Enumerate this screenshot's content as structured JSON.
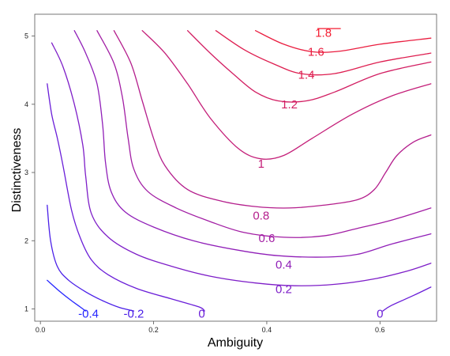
{
  "chart_data": {
    "type": "contour",
    "xlabel": "Ambiguity",
    "ylabel": "Distinctiveness",
    "xlim": [
      -0.01,
      0.7
    ],
    "ylim": [
      0.82,
      5.32
    ],
    "x_ticks": [
      0.0,
      0.2,
      0.4,
      0.6
    ],
    "x_tick_labels": [
      "0.0",
      "0.2",
      "0.4",
      "0.6"
    ],
    "y_ticks": [
      1,
      2,
      3,
      4,
      5
    ],
    "y_tick_labels": [
      "1",
      "2",
      "3",
      "4",
      "5"
    ],
    "grid": false,
    "color_scale": {
      "low": "#1f1fff",
      "high": "#ff1f3a"
    },
    "contours": [
      {
        "level": -0.4,
        "label": "-0.4",
        "label_at": [
          0.085,
          0.93
        ],
        "color": "#2525ff",
        "points": [
          [
            0.012,
            1.42
          ],
          [
            0.035,
            1.25
          ],
          [
            0.055,
            1.12
          ],
          [
            0.07,
            1.03
          ],
          [
            0.08,
            0.97
          ]
        ]
      },
      {
        "level": -0.2,
        "label": "-0.2",
        "label_at": [
          0.165,
          0.93
        ],
        "color": "#4a1fe8",
        "points": [
          [
            0.012,
            2.52
          ],
          [
            0.018,
            2.0
          ],
          [
            0.03,
            1.62
          ],
          [
            0.05,
            1.42
          ],
          [
            0.08,
            1.25
          ],
          [
            0.11,
            1.12
          ],
          [
            0.14,
            1.02
          ],
          [
            0.165,
            0.97
          ]
        ]
      },
      {
        "level": 0,
        "label": "0",
        "label_at": [
          0.285,
          0.93
        ],
        "color": "#6a1ed8",
        "points": [
          [
            0.012,
            4.3
          ],
          [
            0.02,
            3.85
          ],
          [
            0.03,
            3.5
          ],
          [
            0.04,
            3.1
          ],
          [
            0.055,
            2.45
          ],
          [
            0.07,
            2.05
          ],
          [
            0.09,
            1.72
          ],
          [
            0.12,
            1.5
          ],
          [
            0.17,
            1.3
          ],
          [
            0.23,
            1.15
          ],
          [
            0.28,
            1.03
          ],
          [
            0.29,
            0.97
          ]
        ]
      },
      {
        "level": 0,
        "label": "0",
        "label_at": [
          0.6,
          0.93
        ],
        "color": "#6a1ed8",
        "points": [
          [
            0.605,
            0.97
          ],
          [
            0.62,
            1.05
          ],
          [
            0.66,
            1.2
          ],
          [
            0.69,
            1.32
          ]
        ]
      },
      {
        "level": 0.2,
        "label": "0.2",
        "label_at": [
          0.43,
          1.29
        ],
        "color": "#7e1ec8",
        "points": [
          [
            0.02,
            4.9
          ],
          [
            0.04,
            4.55
          ],
          [
            0.06,
            4.0
          ],
          [
            0.075,
            3.4
          ],
          [
            0.08,
            2.95
          ],
          [
            0.09,
            2.4
          ],
          [
            0.12,
            2.05
          ],
          [
            0.17,
            1.8
          ],
          [
            0.23,
            1.63
          ],
          [
            0.3,
            1.48
          ],
          [
            0.38,
            1.38
          ],
          [
            0.45,
            1.34
          ],
          [
            0.52,
            1.36
          ],
          [
            0.59,
            1.44
          ],
          [
            0.65,
            1.56
          ],
          [
            0.69,
            1.67
          ]
        ]
      },
      {
        "level": 0.4,
        "label": "0.4",
        "label_at": [
          0.43,
          1.65
        ],
        "color": "#901fb8",
        "points": [
          [
            0.06,
            5.08
          ],
          [
            0.08,
            4.75
          ],
          [
            0.1,
            4.3
          ],
          [
            0.11,
            3.7
          ],
          [
            0.115,
            3.15
          ],
          [
            0.125,
            2.72
          ],
          [
            0.15,
            2.42
          ],
          [
            0.2,
            2.2
          ],
          [
            0.27,
            2.0
          ],
          [
            0.35,
            1.86
          ],
          [
            0.42,
            1.78
          ],
          [
            0.5,
            1.76
          ],
          [
            0.56,
            1.8
          ],
          [
            0.62,
            1.95
          ],
          [
            0.69,
            2.1
          ]
        ]
      },
      {
        "level": 0.6,
        "label": "0.6",
        "label_at": [
          0.4,
          2.04
        ],
        "color": "#a21ea4",
        "points": [
          [
            0.1,
            5.08
          ],
          [
            0.13,
            4.6
          ],
          [
            0.145,
            4.1
          ],
          [
            0.155,
            3.5
          ],
          [
            0.165,
            3.05
          ],
          [
            0.19,
            2.72
          ],
          [
            0.24,
            2.48
          ],
          [
            0.3,
            2.28
          ],
          [
            0.36,
            2.12
          ],
          [
            0.43,
            2.05
          ],
          [
            0.5,
            2.07
          ],
          [
            0.56,
            2.18
          ],
          [
            0.62,
            2.3
          ],
          [
            0.69,
            2.48
          ]
        ]
      },
      {
        "level": 0.8,
        "label": "0.8",
        "label_at": [
          0.39,
          2.37
        ],
        "color": "#b41e8c",
        "points": [
          [
            0.13,
            5.08
          ],
          [
            0.16,
            4.6
          ],
          [
            0.18,
            4.05
          ],
          [
            0.2,
            3.5
          ],
          [
            0.22,
            3.1
          ],
          [
            0.26,
            2.75
          ],
          [
            0.32,
            2.58
          ],
          [
            0.38,
            2.5
          ],
          [
            0.44,
            2.48
          ],
          [
            0.5,
            2.52
          ],
          [
            0.56,
            2.6
          ],
          [
            0.59,
            2.75
          ],
          [
            0.61,
            3.0
          ],
          [
            0.63,
            3.25
          ],
          [
            0.66,
            3.45
          ],
          [
            0.69,
            3.55
          ]
        ]
      },
      {
        "level": 1,
        "label": "1",
        "label_at": [
          0.39,
          3.13
        ],
        "color": "#c41e78",
        "points": [
          [
            0.18,
            5.08
          ],
          [
            0.22,
            4.75
          ],
          [
            0.26,
            4.3
          ],
          [
            0.3,
            3.8
          ],
          [
            0.35,
            3.35
          ],
          [
            0.39,
            3.2
          ],
          [
            0.43,
            3.25
          ],
          [
            0.48,
            3.5
          ],
          [
            0.55,
            3.85
          ],
          [
            0.62,
            4.12
          ],
          [
            0.69,
            4.3
          ]
        ]
      },
      {
        "level": 1.2,
        "label": "1.2",
        "label_at": [
          0.44,
          4.0
        ],
        "color": "#d21e62",
        "points": [
          [
            0.26,
            5.08
          ],
          [
            0.3,
            4.75
          ],
          [
            0.34,
            4.45
          ],
          [
            0.38,
            4.18
          ],
          [
            0.42,
            4.05
          ],
          [
            0.47,
            4.05
          ],
          [
            0.52,
            4.18
          ],
          [
            0.6,
            4.45
          ],
          [
            0.69,
            4.62
          ]
        ]
      },
      {
        "level": 1.4,
        "label": "1.4",
        "label_at": [
          0.47,
          4.43
        ],
        "color": "#de1e50",
        "points": [
          [
            0.31,
            5.08
          ],
          [
            0.36,
            4.8
          ],
          [
            0.41,
            4.6
          ],
          [
            0.46,
            4.45
          ],
          [
            0.52,
            4.45
          ],
          [
            0.6,
            4.62
          ],
          [
            0.69,
            4.75
          ]
        ]
      },
      {
        "level": 1.6,
        "label": "1.6",
        "label_at": [
          0.487,
          4.77
        ],
        "color": "#ea1e40",
        "points": [
          [
            0.38,
            5.08
          ],
          [
            0.43,
            4.88
          ],
          [
            0.48,
            4.77
          ],
          [
            0.53,
            4.78
          ],
          [
            0.6,
            4.88
          ],
          [
            0.69,
            4.97
          ]
        ]
      },
      {
        "level": 1.8,
        "label": "1.8",
        "label_at": [
          0.5,
          5.05
        ],
        "color": "#f41e32",
        "points": [
          [
            0.49,
            5.11
          ],
          [
            0.53,
            5.11
          ]
        ]
      }
    ]
  }
}
